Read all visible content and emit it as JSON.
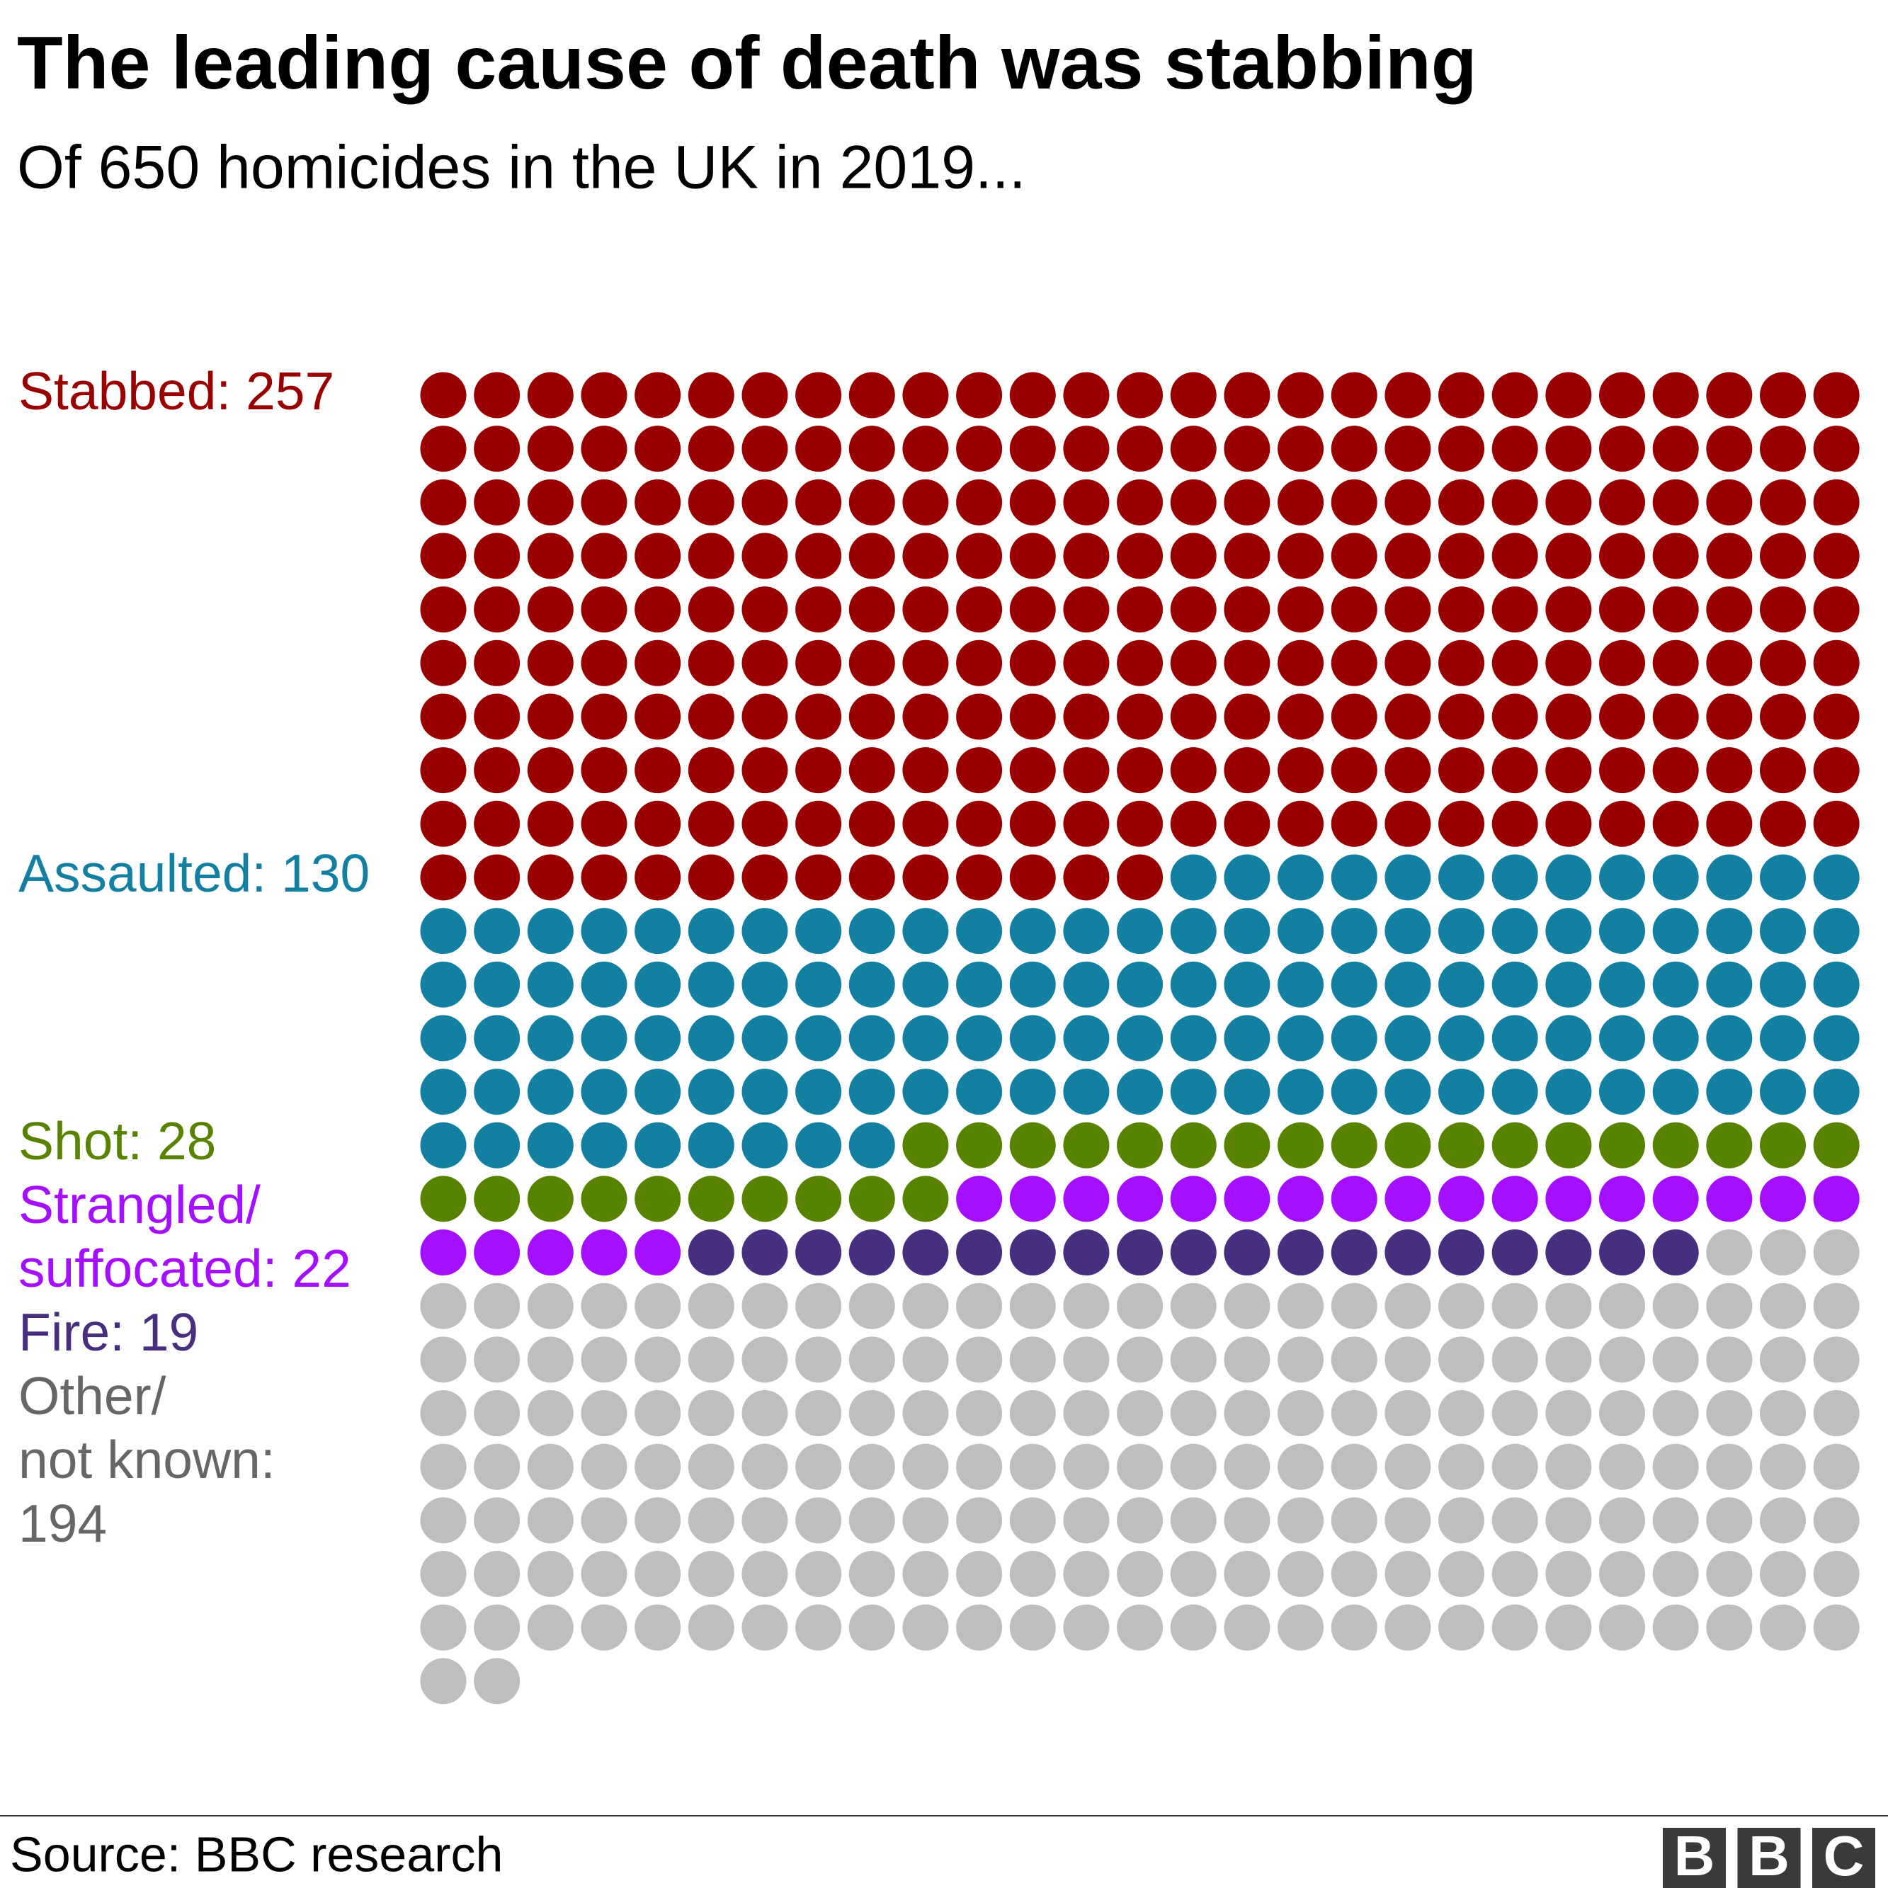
{
  "chart_data": {
    "type": "waffle",
    "title": "The leading cause of death was stabbing",
    "subtitle": "Of 650 homicides in the UK in 2019...",
    "columns": 27,
    "series": [
      {
        "name": "Stabbed",
        "label_lines": [
          "Stabbed: 257"
        ],
        "value": 257,
        "color": "#990000",
        "label_color": "#990000"
      },
      {
        "name": "Assaulted",
        "label_lines": [
          "Assaulted: 130"
        ],
        "value": 130,
        "color": "#1380a1",
        "label_color": "#1380a1"
      },
      {
        "name": "Shot",
        "label_lines": [
          "Shot: 28"
        ],
        "value": 28,
        "color": "#588300",
        "label_color": "#588300"
      },
      {
        "name": "Strangled/suffocated",
        "label_lines": [
          "Strangled/",
          "suffocated: 22"
        ],
        "value": 22,
        "color": "#a50fff",
        "label_color": "#a50fff"
      },
      {
        "name": "Fire",
        "label_lines": [
          "Fire: 19"
        ],
        "value": 19,
        "color": "#472e7e",
        "label_color": "#472e7e"
      },
      {
        "name": "Other/not known",
        "label_lines": [
          "Other/",
          "not known:",
          "194"
        ],
        "value": 194,
        "color": "#bebebe",
        "label_color": "#666666"
      }
    ],
    "source": "Source: BBC research",
    "logo": [
      "B",
      "B",
      "C"
    ]
  }
}
